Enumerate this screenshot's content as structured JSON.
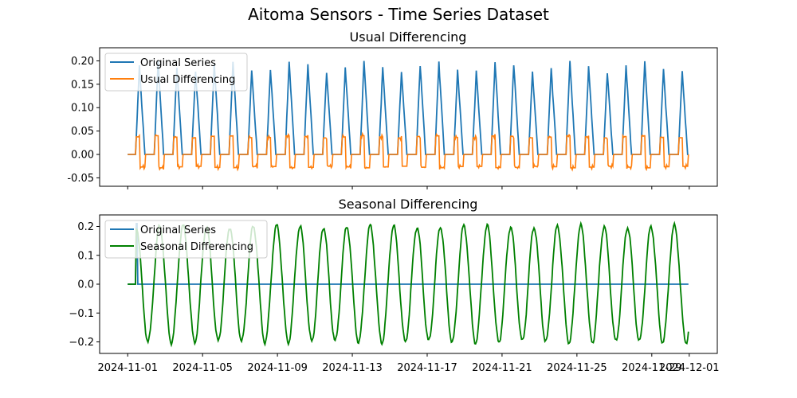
{
  "figure": {
    "title": "Aitoma Sensors - Time Series Dataset"
  },
  "colors": {
    "original": "#1f77b4",
    "usual": "#ff7f0e",
    "seasonal": "#008000"
  },
  "chart_data": [
    {
      "type": "line",
      "title": "Usual Differencing",
      "x_range": [
        "2024-11-01",
        "2024-11-30"
      ],
      "xlim": [
        "2024-10-30T12:00",
        "2024-12-02T12:00"
      ],
      "ylim": [
        -0.068,
        0.228
      ],
      "y_ticks": [
        -0.05,
        0.0,
        0.05,
        0.1,
        0.15,
        0.2
      ],
      "x_ticks_labels": "hidden",
      "legend_position": "upper-left",
      "series": [
        {
          "name": "Original Series",
          "color": "#1f77b4",
          "description": "daily pulse 0 to ~0.20; starts at 2024-11-01T11:00, rises to peak about 0.20 over ~5 hours then decays back to 0 by ~23:00; 24 h period",
          "period_hours": 24,
          "amplitude": 0.2,
          "pulse_start_hour": 11,
          "rise_hours": 5,
          "fall_hours": 7
        },
        {
          "name": "Usual Differencing",
          "color": "#ff7f0e",
          "description": "first difference of the original series, ranging about -0.05 to +0.05, near 0 outside pulses"
        }
      ]
    },
    {
      "type": "line",
      "title": "Seasonal Differencing",
      "x_range": [
        "2024-11-01",
        "2024-11-30"
      ],
      "xlim": [
        "2024-10-30T12:00",
        "2024-12-02T12:00"
      ],
      "ylim": [
        -0.24,
        0.24
      ],
      "y_ticks": [
        -0.2,
        -0.1,
        0.0,
        0.1,
        0.2
      ],
      "x_ticks": [
        "2024-11-01",
        "2024-11-05",
        "2024-11-09",
        "2024-11-13",
        "2024-11-17",
        "2024-11-21",
        "2024-11-25",
        "2024-11-29",
        "2024-12-01"
      ],
      "legend_position": "upper-left",
      "series": [
        {
          "name": "Original Series",
          "color": "#1f77b4",
          "description": "shown as near-zero line with small step at start (0 to ~0.21 then 0)"
        },
        {
          "name": "Seasonal Differencing",
          "color": "#008000",
          "description": "oscillating sinusoid with period ~1.25 days, amplitude about 0.20"
        }
      ]
    }
  ]
}
